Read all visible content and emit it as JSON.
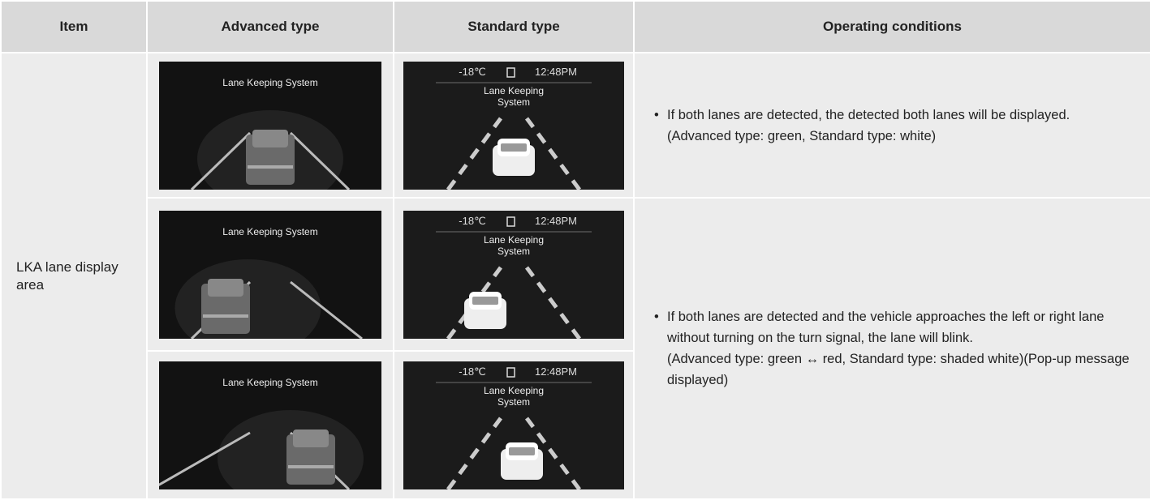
{
  "table": {
    "header": [
      "Item",
      "Advanced type",
      "Standard type",
      "Operating conditions"
    ],
    "item": "LKA lane display area",
    "rows": [
      {
        "advanced": {
          "title": "Lane Keeping System"
        },
        "standard": {
          "temperature": "-18℃",
          "time": "12:48PM",
          "title": [
            "Lane Keeping",
            "System"
          ]
        }
      },
      {
        "advanced": {
          "title": "Lane Keeping System"
        },
        "standard": {
          "temperature": "-18℃",
          "time": "12:48PM",
          "title": [
            "Lane Keeping",
            "System"
          ]
        }
      },
      {
        "advanced": {
          "title": "Lane Keeping System"
        },
        "standard": {
          "temperature": "-18℃",
          "time": "12:48PM",
          "title": [
            "Lane Keeping",
            "System"
          ]
        }
      }
    ],
    "conditions": [
      {
        "text": "If both lanes are detected, the detected both lanes will be displayed.",
        "note": "(Advanced type: green, Standard type: white)"
      },
      {
        "text": "If both lanes are detected and the vehicle approaches the left or right lane without turning on the turn signal, the lane will blink.",
        "note": "(Advanced type: green ↔ red, Standard type: shaded white)(Pop-up message displayed)"
      }
    ]
  }
}
